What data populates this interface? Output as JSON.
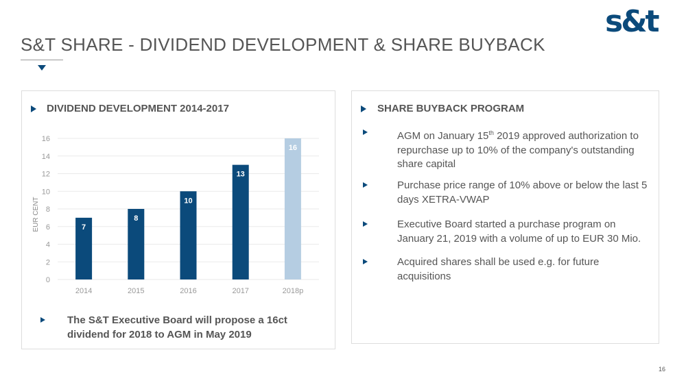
{
  "header": {
    "title": "S&T SHARE - DIVIDEND DEVELOPMENT & SHARE BUYBACK",
    "logo_text": "s&t"
  },
  "left": {
    "heading": "DIVIDEND DEVELOPMENT 2014-2017",
    "note": "The S&T Executive Board will propose a 16ct dividend for 2018 to AGM in May 2019"
  },
  "right": {
    "heading": "SHARE BUYBACK PROGRAM",
    "items": [
      {
        "pre": "AGM on January 15",
        "sup": "th",
        "post": " 2019 approved authorization to repurchase up to 10% of the company's outstanding share capital"
      },
      {
        "text": "Purchase price range of 10% above or below the last 5 days XETRA-VWAP"
      },
      {
        "text": "Executive Board started a purchase program on January 21, 2019 with a volume of up to  EUR 30 Mio."
      },
      {
        "text": "Acquired shares shall be used e.g. for future acquisitions"
      }
    ]
  },
  "page_number": "16",
  "colors": {
    "primary": "#0b4a7b",
    "projected": "#b5cde2"
  },
  "chart_data": {
    "type": "bar",
    "categories": [
      "2014",
      "2015",
      "2016",
      "2017",
      "2018p"
    ],
    "values": [
      7,
      8,
      10,
      13,
      16
    ],
    "projected": [
      false,
      false,
      false,
      false,
      true
    ],
    "ylabel": "EUR CENT",
    "xlabel": "",
    "ylim": [
      0,
      16
    ],
    "yticks": [
      0,
      2,
      4,
      6,
      8,
      10,
      12,
      14,
      16
    ],
    "grid": true
  }
}
